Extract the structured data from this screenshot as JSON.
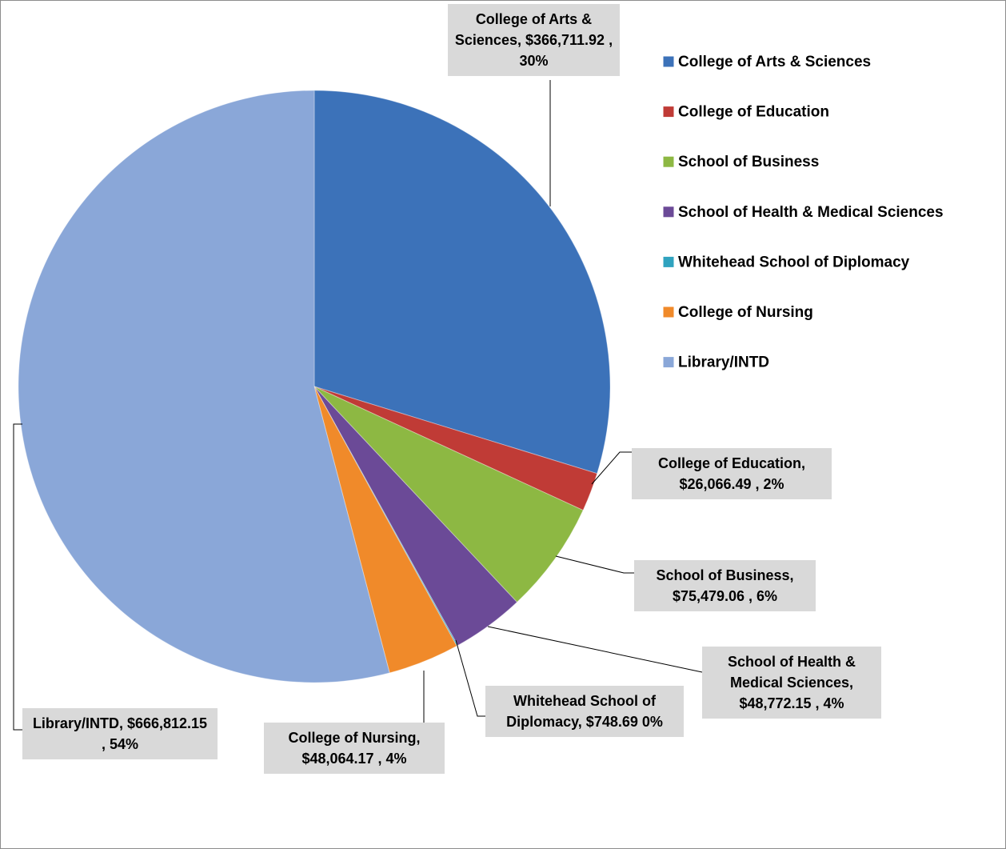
{
  "chart_data": {
    "type": "pie",
    "categories": [
      "College of Arts & Sciences",
      "College of Education",
      "School of Business",
      "School of Health & Medical Sciences",
      "Whitehead School of Diplomacy",
      "College of Nursing",
      "Library/INTD"
    ],
    "values": [
      366711.92,
      26066.49,
      75479.06,
      48772.15,
      748.69,
      48064.17,
      666812.15
    ],
    "value_labels": [
      "College of Arts & Sciences, $366,711.92 , 30%",
      "College of Education, $26,066.49 , 2%",
      "School of Business, $75,479.06 , 6%",
      "School of Health & Medical Sciences, $48,772.15 , 4%",
      "Whitehead School of Diplomacy, $748.69 0%",
      "College of Nursing, $48,064.17 , 4%",
      "Library/INTD, $666,812.15 , 54%"
    ],
    "colors": [
      "#3c72b9",
      "#c03b36",
      "#8db843",
      "#6b4a97",
      "#30a3bf",
      "#f08a2a",
      "#8aa7d8"
    ],
    "legend": "right"
  }
}
